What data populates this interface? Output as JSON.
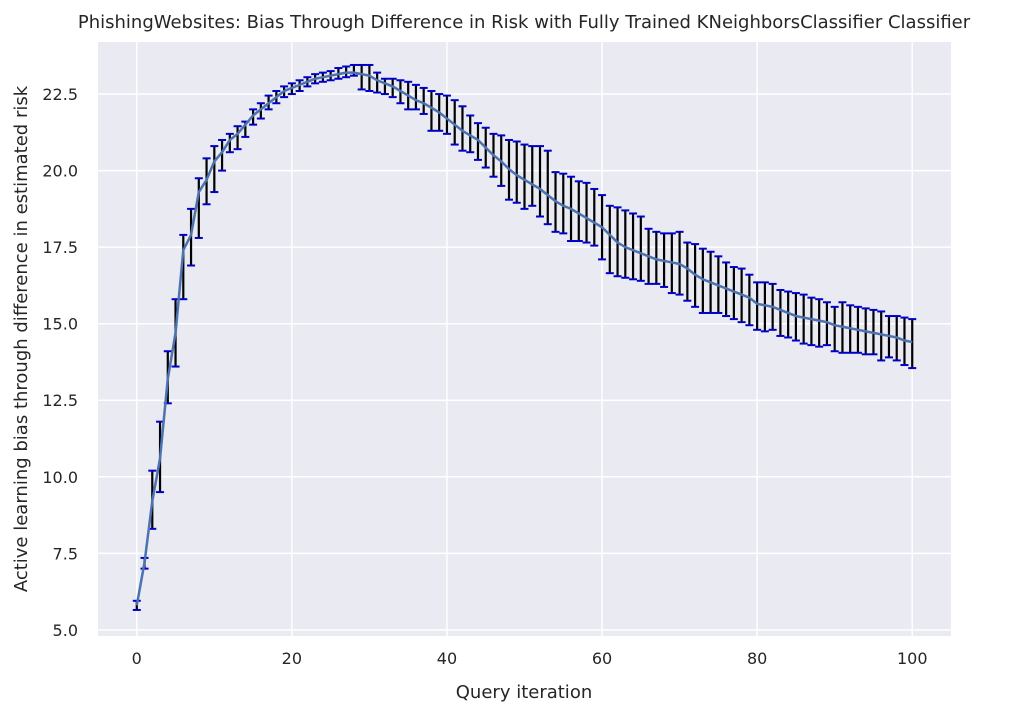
{
  "chart_data": {
    "type": "line",
    "title": "PhishingWebsites: Bias Through Difference in Risk with Fully Trained KNeighborsClassifier Classifier",
    "xlabel": "Query iteration",
    "ylabel": "Active learning bias through difference in estimated risk",
    "xlim": [
      -5,
      105
    ],
    "ylim": [
      4.8,
      24.2
    ],
    "x_ticks": [
      0,
      20,
      40,
      60,
      80,
      100
    ],
    "x_tick_labels": [
      "0",
      "20",
      "40",
      "60",
      "80",
      "100"
    ],
    "y_ticks": [
      5.0,
      7.5,
      10.0,
      12.5,
      15.0,
      17.5,
      20.0,
      22.5
    ],
    "y_tick_labels": [
      "5.0",
      "7.5",
      "10.0",
      "12.5",
      "15.0",
      "17.5",
      "20.0",
      "22.5"
    ],
    "grid": true,
    "background": "#eaeaf2",
    "line_color": "#4c72b0",
    "errorbar_color": "#000000",
    "cap_color": "#0000cc",
    "series": [
      {
        "x": [
          0,
          1,
          2,
          3,
          4,
          5,
          6,
          7,
          8,
          9,
          10,
          11,
          12,
          13,
          14,
          15,
          16,
          17,
          18,
          19,
          20,
          21,
          22,
          23,
          24,
          25,
          26,
          27,
          28,
          29,
          30,
          31,
          32,
          33,
          34,
          35,
          36,
          37,
          38,
          39,
          40,
          41,
          42,
          43,
          44,
          45,
          46,
          47,
          48,
          49,
          50,
          51,
          52,
          53,
          54,
          55,
          56,
          57,
          58,
          59,
          60,
          61,
          62,
          63,
          64,
          65,
          66,
          67,
          68,
          69,
          70,
          71,
          72,
          73,
          74,
          75,
          76,
          77,
          78,
          79,
          80,
          81,
          82,
          83,
          84,
          85,
          86,
          87,
          88,
          89,
          90,
          91,
          92,
          93,
          94,
          95,
          96,
          97,
          98,
          99,
          100
        ],
        "y": [
          5.8,
          7.2,
          9.2,
          10.6,
          13.2,
          14.7,
          17.4,
          17.9,
          19.3,
          19.7,
          20.3,
          20.6,
          21.0,
          21.2,
          21.5,
          21.8,
          22.0,
          22.2,
          22.4,
          22.6,
          22.7,
          22.8,
          22.9,
          23.0,
          23.05,
          23.1,
          23.15,
          23.2,
          23.2,
          23.15,
          23.1,
          22.95,
          22.85,
          22.75,
          22.6,
          22.45,
          22.3,
          22.2,
          22.05,
          21.9,
          21.7,
          21.5,
          21.3,
          21.15,
          21.0,
          20.75,
          20.5,
          20.3,
          20.05,
          19.85,
          19.7,
          19.55,
          19.4,
          19.2,
          19.0,
          18.85,
          18.75,
          18.6,
          18.45,
          18.3,
          18.15,
          17.9,
          17.65,
          17.5,
          17.4,
          17.3,
          17.2,
          17.1,
          17.05,
          17.0,
          16.95,
          16.8,
          16.6,
          16.45,
          16.35,
          16.25,
          16.15,
          16.05,
          15.95,
          15.85,
          15.65,
          15.6,
          15.55,
          15.45,
          15.35,
          15.25,
          15.2,
          15.15,
          15.1,
          15.05,
          14.95,
          14.9,
          14.85,
          14.8,
          14.75,
          14.7,
          14.65,
          14.6,
          14.55,
          14.45,
          14.4
        ],
        "lower": [
          5.65,
          7.0,
          8.3,
          9.5,
          12.4,
          13.6,
          15.8,
          16.9,
          17.8,
          18.9,
          19.3,
          20.0,
          20.6,
          20.7,
          21.1,
          21.5,
          21.7,
          22.0,
          22.2,
          22.4,
          22.5,
          22.6,
          22.75,
          22.85,
          22.9,
          22.95,
          23.0,
          23.05,
          23.1,
          22.65,
          22.6,
          22.55,
          22.5,
          22.4,
          22.2,
          22.0,
          22.0,
          21.85,
          21.3,
          21.3,
          21.2,
          20.85,
          20.65,
          20.6,
          20.35,
          20.1,
          19.8,
          19.5,
          19.05,
          18.95,
          18.75,
          18.85,
          18.5,
          18.25,
          18.0,
          17.95,
          17.7,
          17.7,
          17.65,
          17.55,
          17.1,
          16.65,
          16.55,
          16.5,
          16.45,
          16.4,
          16.3,
          16.3,
          16.2,
          16.0,
          15.95,
          15.75,
          15.55,
          15.35,
          15.35,
          15.35,
          15.25,
          15.15,
          15.05,
          14.95,
          14.8,
          14.75,
          14.8,
          14.6,
          14.55,
          14.45,
          14.35,
          14.3,
          14.25,
          14.3,
          14.1,
          14.05,
          14.05,
          14.05,
          14.0,
          14.0,
          13.8,
          13.9,
          13.8,
          13.65,
          13.55
        ],
        "upper": [
          5.95,
          7.35,
          10.2,
          11.8,
          14.1,
          15.8,
          17.9,
          18.75,
          19.75,
          20.4,
          20.8,
          21.0,
          21.2,
          21.45,
          21.6,
          22.0,
          22.2,
          22.45,
          22.6,
          22.75,
          22.85,
          22.95,
          23.05,
          23.15,
          23.2,
          23.25,
          23.35,
          23.4,
          23.45,
          23.45,
          23.45,
          23.2,
          23.0,
          23.0,
          22.95,
          22.9,
          22.8,
          22.7,
          22.6,
          22.5,
          22.45,
          22.3,
          22.1,
          21.8,
          21.55,
          21.4,
          21.2,
          21.15,
          21.0,
          20.95,
          20.85,
          20.8,
          20.8,
          20.65,
          19.95,
          19.9,
          19.8,
          19.65,
          19.6,
          19.4,
          19.2,
          18.85,
          18.8,
          18.7,
          18.6,
          18.5,
          18.1,
          18.0,
          17.95,
          17.95,
          18.0,
          17.65,
          17.6,
          17.45,
          17.35,
          17.2,
          17.0,
          16.85,
          16.8,
          16.6,
          16.35,
          16.35,
          16.3,
          16.1,
          16.05,
          16.0,
          15.95,
          15.85,
          15.8,
          15.7,
          15.55,
          15.7,
          15.6,
          15.55,
          15.5,
          15.45,
          15.4,
          15.25,
          15.25,
          15.2,
          15.15
        ]
      }
    ]
  }
}
